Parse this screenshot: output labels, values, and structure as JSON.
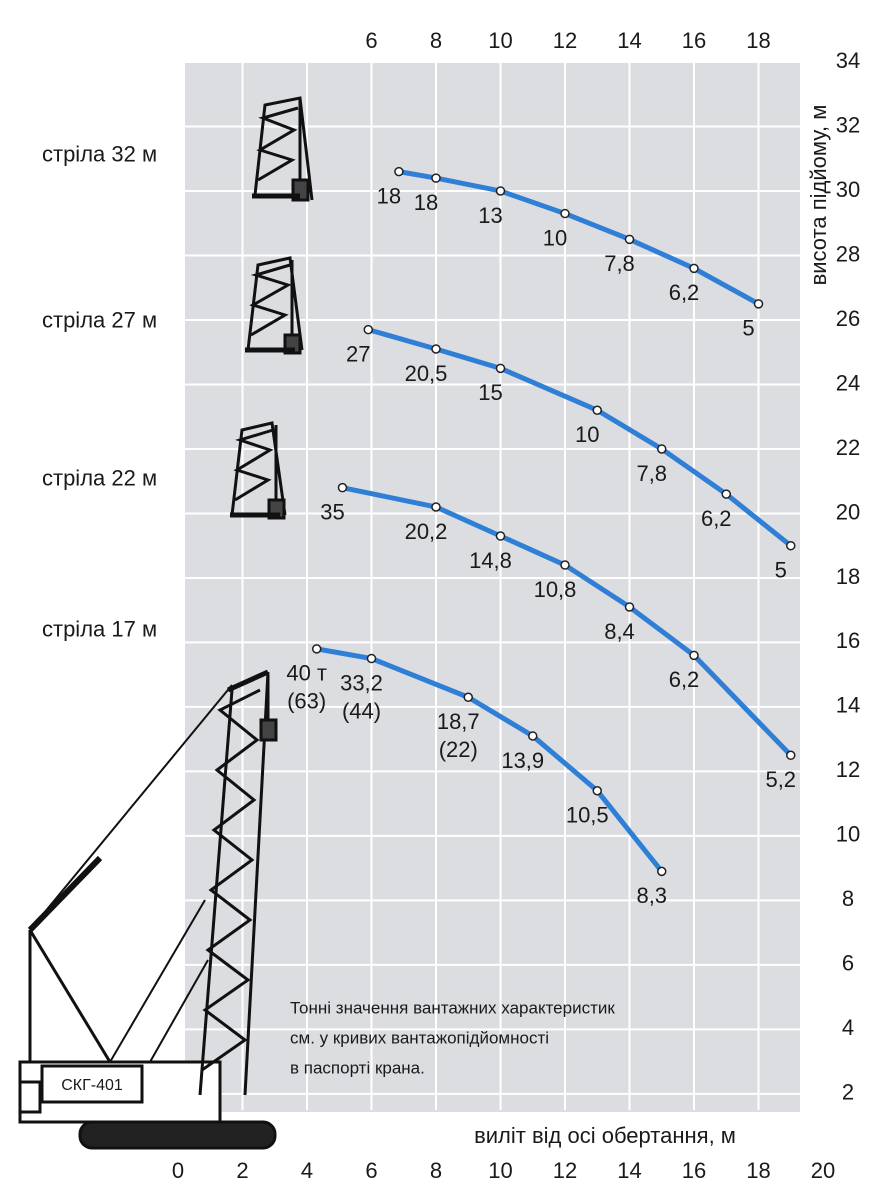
{
  "chart_data": {
    "type": "line",
    "x_label": "виліт від осі обертання, м",
    "y_label": "висота підйому, м",
    "xlim": [
      0,
      20
    ],
    "ylim": [
      1.5,
      34
    ],
    "xticks": [
      0,
      2,
      4,
      6,
      8,
      10,
      12,
      14,
      16,
      18,
      20
    ],
    "xticks_top": [
      6,
      8,
      10,
      12,
      14,
      16,
      18
    ],
    "yticks": [
      2,
      4,
      6,
      8,
      10,
      12,
      14,
      16,
      18,
      20,
      22,
      24,
      26,
      28,
      30,
      32,
      34
    ],
    "grid": true,
    "series": [
      {
        "name": "стріла 32 м",
        "color": "#2f7fd6",
        "x": [
          6.85,
          8,
          10,
          12,
          14,
          16,
          18
        ],
        "values": [
          30.6,
          30.4,
          30,
          29.3,
          28.5,
          27.6,
          26.5
        ],
        "point_labels": [
          "18",
          "18",
          "13",
          "10",
          "7,8",
          "6,2",
          "5"
        ]
      },
      {
        "name": "стріла 27 м",
        "color": "#2f7fd6",
        "x": [
          5.9,
          8,
          10,
          13,
          15,
          17,
          19
        ],
        "values": [
          25.7,
          25.1,
          24.5,
          23.2,
          22,
          20.6,
          19
        ],
        "point_labels": [
          "27",
          "20,5",
          "15",
          "10",
          "7,8",
          "6,2",
          "5"
        ]
      },
      {
        "name": "стріла 22 м",
        "color": "#2f7fd6",
        "x": [
          5.1,
          8,
          10,
          12,
          14,
          16,
          19
        ],
        "values": [
          20.8,
          20.2,
          19.3,
          18.4,
          17.1,
          15.6,
          12.5
        ],
        "point_labels": [
          "35",
          "20,2",
          "14,8",
          "10,8",
          "8,4",
          "6,2",
          "5,2"
        ]
      },
      {
        "name": "стріла 17 м",
        "color": "#2f7fd6",
        "x": [
          4.3,
          6,
          9,
          11,
          13,
          15
        ],
        "values": [
          15.8,
          15.5,
          14.3,
          13.1,
          11.4,
          8.9
        ],
        "point_labels": [
          "40 т",
          "33,2",
          "18,7",
          "13,9",
          "10,5",
          "8,3"
        ],
        "secondary_labels": [
          "(63)",
          "(44)",
          "(22)",
          null,
          null,
          null
        ]
      }
    ],
    "note": [
      "Тонні значення вантажних характеристик",
      "см. у кривих вантажопідйомності",
      "в паспорті крана."
    ],
    "crane_label": "СКГ-401"
  }
}
